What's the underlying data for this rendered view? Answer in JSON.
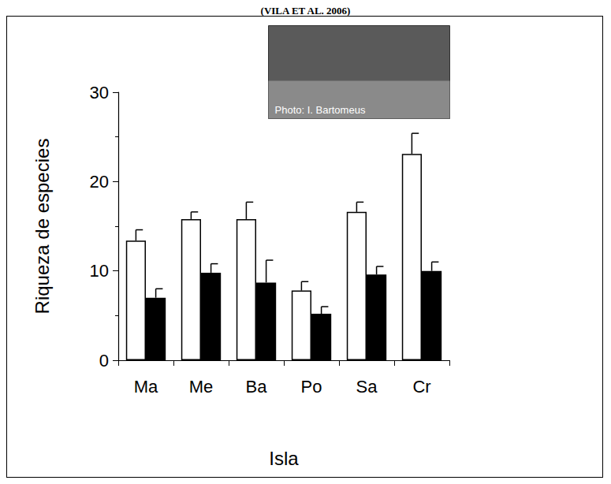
{
  "chart_data": {
    "type": "bar",
    "title": "(VILA ET AL. 2006)",
    "xlabel": "Isla",
    "ylabel": "Riqueza de especies",
    "annotations": [
      "Photo: I. Bartomeus"
    ],
    "categories": [
      "Ma",
      "Me",
      "Ba",
      "Po",
      "Sa",
      "Cr"
    ],
    "series": [
      {
        "color": "#ffffff",
        "values": [
          13.4,
          15.8,
          15.8,
          7.8,
          16.6,
          23.1
        ],
        "errors": [
          1.2,
          0.8,
          1.9,
          1.0,
          1.1,
          2.3
        ]
      },
      {
        "color": "#000000",
        "values": [
          7.0,
          9.8,
          8.7,
          5.2,
          9.6,
          10.0
        ],
        "errors": [
          1.0,
          1.0,
          2.5,
          0.8,
          0.9,
          1.0
        ]
      }
    ],
    "ylim": [
      0,
      30
    ],
    "yticks": [
      0,
      10,
      20,
      30
    ],
    "grid": false
  }
}
